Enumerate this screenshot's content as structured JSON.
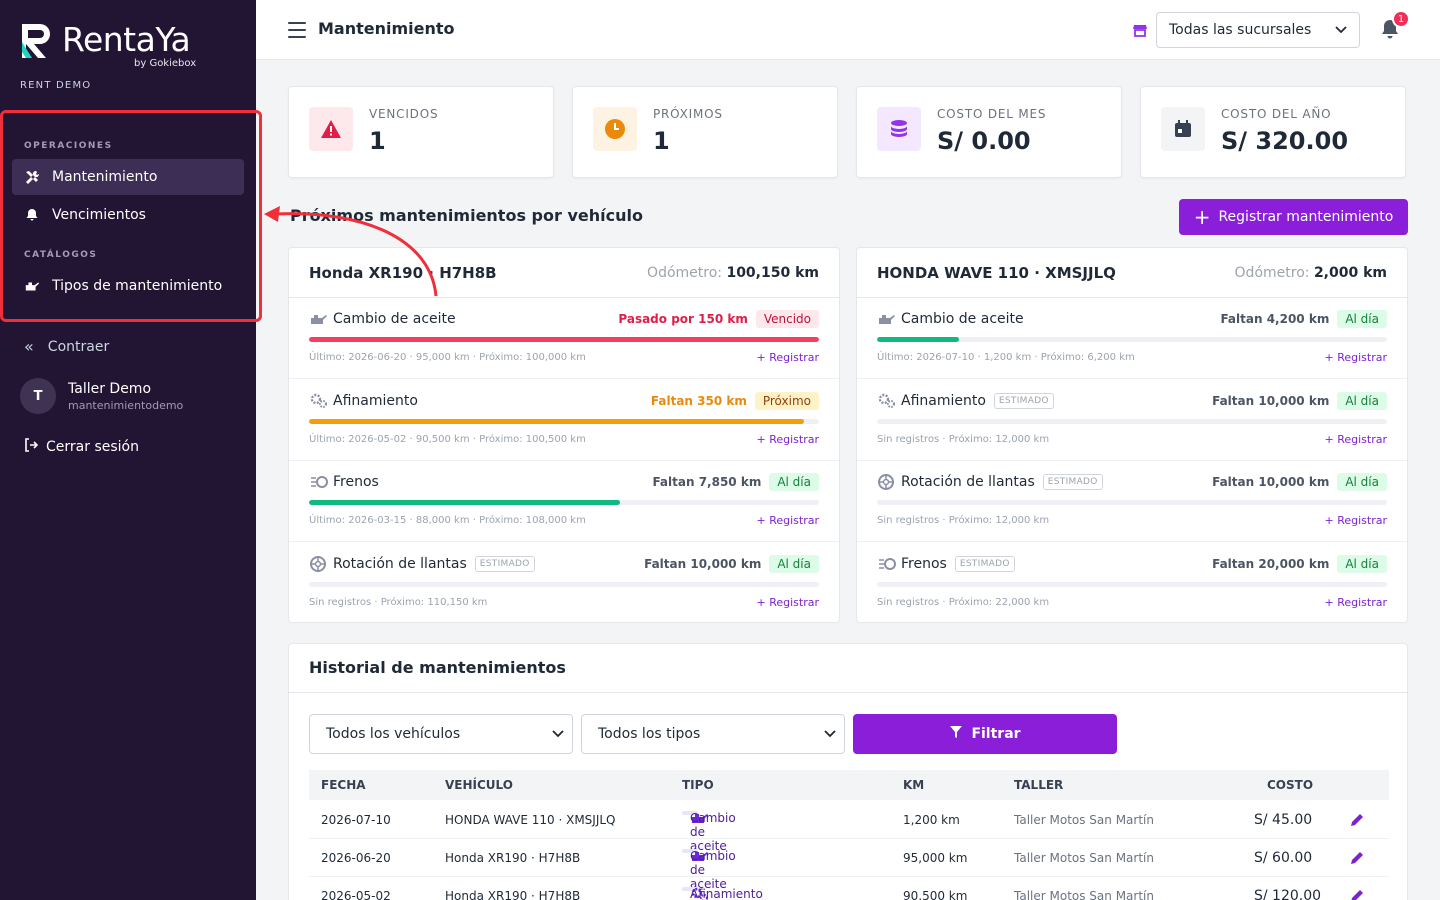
{
  "brand": {
    "name": "RentaYa",
    "by": "by Gokiebox",
    "tenant": "RENT DEMO"
  },
  "sidebar": {
    "sections": [
      {
        "label": "OPERACIONES",
        "items": [
          {
            "label": "Mantenimiento",
            "icon": "tools-icon",
            "active": true
          },
          {
            "label": "Vencimientos",
            "icon": "bell-icon"
          }
        ]
      },
      {
        "label": "CATÁLOGOS",
        "items": [
          {
            "label": "Tipos de mantenimiento",
            "icon": "oil-can-icon"
          }
        ]
      }
    ],
    "collapse_label": "Contraer",
    "user": {
      "initial": "T",
      "name": "Taller Demo",
      "handle": "mantenimientodemo"
    },
    "logout_label": "Cerrar sesión"
  },
  "topbar": {
    "title": "Mantenimiento",
    "branch_select": "Todas las sucursales",
    "notifications": "1"
  },
  "stats": [
    {
      "label": "VENCIDOS",
      "value": "1",
      "icon": "warning-icon",
      "color": "#e11d48",
      "bg": "#fde8ec"
    },
    {
      "label": "PRÓXIMOS",
      "value": "1",
      "icon": "clock-icon",
      "color": "#ea8a0c",
      "bg": "#fef3e2"
    },
    {
      "label": "COSTO DEL MES",
      "value": "S/ 0.00",
      "icon": "coins-icon",
      "color": "#9333ea",
      "bg": "#f3e8ff"
    },
    {
      "label": "COSTO DEL AÑO",
      "value": "S/ 320.00",
      "icon": "calendar-icon",
      "color": "#374151",
      "bg": "#f3f4f6"
    }
  ],
  "section_title": "Próximos mantenimientos por vehículo",
  "register_button": "Registrar mantenimiento",
  "vehicles": [
    {
      "name": "Honda XR190 · H7H8B",
      "odometer_label": "Odómetro:",
      "odometer": "100,150 km",
      "items": [
        {
          "name": "Cambio de aceite",
          "icon": "oil-can-icon",
          "estimated": false,
          "status_text": "Pasado por 150 km",
          "status_color": "#e11d48",
          "pill": "Vencido",
          "pill_bg": "#fde8ec",
          "pill_color": "#be123c",
          "progress": 1.0,
          "bar_color": "#f43f5e",
          "foot": "Último: 2026-06-20 · 95,000 km · Próximo: 100,000 km",
          "register": "Registrar"
        },
        {
          "name": "Afinamiento",
          "icon": "gears-icon",
          "estimated": false,
          "status_text": "Faltan 350 km",
          "status_color": "#ea8a0c",
          "pill": "Próximo",
          "pill_bg": "#fef3c7",
          "pill_color": "#92400e",
          "progress": 0.97,
          "bar_color": "#f59e0b",
          "foot": "Último: 2026-05-02 · 90,500 km · Próximo: 100,500 km",
          "register": "Registrar"
        },
        {
          "name": "Frenos",
          "icon": "brake-icon",
          "estimated": false,
          "status_text": "Faltan 7,850 km",
          "status_color": "#4b5563",
          "pill": "Al día",
          "pill_bg": "#dcfce7",
          "pill_color": "#15803d",
          "progress": 0.61,
          "bar_color": "#10b981",
          "foot": "Último: 2026-03-15 · 88,000 km · Próximo: 108,000 km",
          "register": "Registrar"
        },
        {
          "name": "Rotación de llantas",
          "icon": "tire-icon",
          "estimated": true,
          "estimated_label": "ESTIMADO",
          "status_text": "Faltan 10,000 km",
          "status_color": "#4b5563",
          "pill": "Al día",
          "pill_bg": "#dcfce7",
          "pill_color": "#15803d",
          "progress": 0.0,
          "bar_color": "#10b981",
          "foot": "Sin registros · Próximo: 110,150 km",
          "register": "Registrar"
        }
      ]
    },
    {
      "name": "HONDA WAVE 110 · XMSJJLQ",
      "odometer_label": "Odómetro:",
      "odometer": "2,000 km",
      "items": [
        {
          "name": "Cambio de aceite",
          "icon": "oil-can-icon",
          "estimated": false,
          "status_text": "Faltan 4,200 km",
          "status_color": "#4b5563",
          "pill": "Al día",
          "pill_bg": "#dcfce7",
          "pill_color": "#15803d",
          "progress": 0.16,
          "bar_color": "#10b981",
          "foot": "Último: 2026-07-10 · 1,200 km · Próximo: 6,200 km",
          "register": "Registrar"
        },
        {
          "name": "Afinamiento",
          "icon": "gears-icon",
          "estimated": true,
          "estimated_label": "ESTIMADO",
          "status_text": "Faltan 10,000 km",
          "status_color": "#4b5563",
          "pill": "Al día",
          "pill_bg": "#dcfce7",
          "pill_color": "#15803d",
          "progress": 0.0,
          "bar_color": "#10b981",
          "foot": "Sin registros · Próximo: 12,000 km",
          "register": "Registrar"
        },
        {
          "name": "Rotación de llantas",
          "icon": "tire-icon",
          "estimated": true,
          "estimated_label": "ESTIMADO",
          "status_text": "Faltan 10,000 km",
          "status_color": "#4b5563",
          "pill": "Al día",
          "pill_bg": "#dcfce7",
          "pill_color": "#15803d",
          "progress": 0.0,
          "bar_color": "#10b981",
          "foot": "Sin registros · Próximo: 12,000 km",
          "register": "Registrar"
        },
        {
          "name": "Frenos",
          "icon": "brake-icon",
          "estimated": true,
          "estimated_label": "ESTIMADO",
          "status_text": "Faltan 20,000 km",
          "status_color": "#4b5563",
          "pill": "Al día",
          "pill_bg": "#dcfce7",
          "pill_color": "#15803d",
          "progress": 0.0,
          "bar_color": "#10b981",
          "foot": "Sin registros · Próximo: 22,000 km",
          "register": "Registrar"
        }
      ]
    }
  ],
  "history": {
    "title": "Historial de mantenimientos",
    "vehicle_filter": "Todos los vehículos",
    "type_filter": "Todos los tipos",
    "filter_button": "Filtrar",
    "columns": [
      "FECHA",
      "VEHÍCULO",
      "TIPO",
      "KM",
      "TALLER",
      "COSTO"
    ],
    "rows": [
      {
        "fecha": "2026-07-10",
        "vehiculo": "HONDA WAVE 110 · XMSJJLQ",
        "tipo": "Cambio de aceite",
        "tipo_icon": "oil-can-icon",
        "km": "1,200 km",
        "taller": "Taller Motos San Martín",
        "costo": "S/ 45.00"
      },
      {
        "fecha": "2026-06-20",
        "vehiculo": "Honda XR190 · H7H8B",
        "tipo": "Cambio de aceite",
        "tipo_icon": "oil-can-icon",
        "km": "95,000 km",
        "taller": "Taller Motos San Martín",
        "costo": "S/ 60.00"
      },
      {
        "fecha": "2026-05-02",
        "vehiculo": "Honda XR190 · H7H8B",
        "tipo": "Afinamiento",
        "tipo_icon": "gears-icon",
        "km": "90,500 km",
        "taller": "Taller Motos San Martín",
        "costo": "S/ 120.00"
      }
    ]
  }
}
